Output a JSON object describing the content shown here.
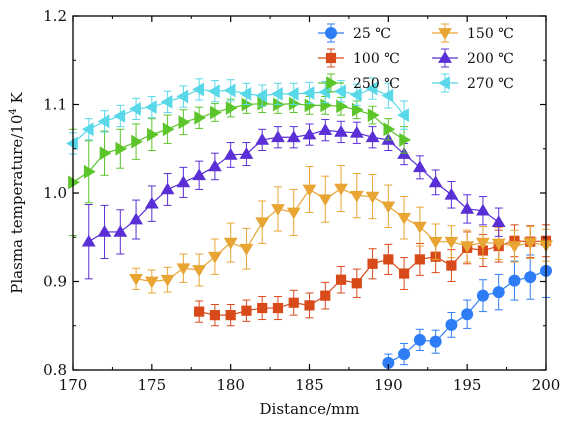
{
  "chart_data": {
    "type": "scatter",
    "title": "",
    "xlabel": "Distance/mm",
    "ylabel_prefix": "Plasma temperature/10",
    "ylabel_sup": "4",
    "ylabel_suffix": " K",
    "xlim": [
      170,
      200
    ],
    "ylim": [
      0.8,
      1.2
    ],
    "x_ticks": [
      170,
      175,
      180,
      185,
      190,
      195,
      200
    ],
    "y_ticks": [
      0.8,
      0.9,
      1.0,
      1.1,
      1.2
    ],
    "x_tick_labels": [
      "170",
      "175",
      "180",
      "185",
      "190",
      "195",
      "200"
    ],
    "y_tick_labels": [
      "0.8",
      "0.9",
      "1.0",
      "1.1",
      "1.2"
    ],
    "grid": false,
    "legend_position": "top-right",
    "series": [
      {
        "name": "25 ℃",
        "color": "#2f7df6",
        "marker": "circle",
        "x": [
          190,
          191,
          192,
          193,
          194,
          195,
          196,
          197,
          198,
          199,
          200
        ],
        "y": [
          0.808,
          0.818,
          0.834,
          0.832,
          0.851,
          0.863,
          0.884,
          0.888,
          0.901,
          0.905,
          0.912
        ],
        "err": [
          0.01,
          0.012,
          0.012,
          0.013,
          0.014,
          0.016,
          0.018,
          0.02,
          0.022,
          0.025,
          0.03
        ]
      },
      {
        "name": "100 ℃",
        "color": "#d94a1a",
        "marker": "square",
        "x": [
          178,
          179,
          180,
          181,
          182,
          183,
          184,
          185,
          186,
          187,
          188,
          189,
          190,
          191,
          192,
          193,
          194,
          195,
          196,
          197,
          198,
          199,
          200
        ],
        "y": [
          0.866,
          0.862,
          0.862,
          0.867,
          0.87,
          0.87,
          0.876,
          0.873,
          0.884,
          0.902,
          0.898,
          0.92,
          0.925,
          0.909,
          0.925,
          0.928,
          0.918,
          0.938,
          0.935,
          0.94,
          0.946,
          0.945,
          0.946
        ],
        "err": [
          0.012,
          0.012,
          0.012,
          0.012,
          0.013,
          0.013,
          0.014,
          0.014,
          0.015,
          0.015,
          0.016,
          0.017,
          0.017,
          0.018,
          0.018,
          0.018,
          0.018,
          0.018,
          0.018,
          0.018,
          0.018,
          0.018,
          0.018
        ]
      },
      {
        "name": "150 ℃",
        "color": "#e8a534",
        "marker": "triangle-down",
        "x": [
          174,
          175,
          176,
          177,
          178,
          179,
          180,
          181,
          182,
          183,
          184,
          185,
          186,
          187,
          188,
          189,
          190,
          191,
          192,
          193,
          194,
          195,
          196,
          197,
          198,
          199,
          200
        ],
        "y": [
          0.903,
          0.9,
          0.902,
          0.915,
          0.913,
          0.928,
          0.944,
          0.937,
          0.967,
          0.982,
          0.978,
          1.004,
          0.993,
          1.005,
          0.997,
          0.996,
          0.985,
          0.972,
          0.962,
          0.945,
          0.945,
          0.94,
          0.944,
          0.943,
          0.94,
          0.944,
          0.941
        ],
        "err": [
          0.012,
          0.013,
          0.014,
          0.016,
          0.018,
          0.02,
          0.022,
          0.023,
          0.024,
          0.025,
          0.026,
          0.026,
          0.026,
          0.026,
          0.025,
          0.025,
          0.024,
          0.024,
          0.022,
          0.02,
          0.018,
          0.018,
          0.018,
          0.018,
          0.018,
          0.018,
          0.018
        ]
      },
      {
        "name": "200 ℃",
        "color": "#5a2fd6",
        "marker": "triangle-up",
        "x": [
          171,
          172,
          173,
          174,
          175,
          176,
          177,
          178,
          179,
          180,
          181,
          182,
          183,
          184,
          185,
          186,
          187,
          188,
          189,
          190,
          191,
          192,
          193,
          194,
          195,
          196,
          197
        ],
        "y": [
          0.945,
          0.956,
          0.956,
          0.97,
          0.988,
          1.004,
          1.012,
          1.02,
          1.03,
          1.043,
          1.044,
          1.06,
          1.063,
          1.063,
          1.066,
          1.071,
          1.069,
          1.068,
          1.063,
          1.06,
          1.044,
          1.029,
          1.012,
          0.998,
          0.982,
          0.98,
          0.967
        ],
        "err": [
          0.042,
          0.03,
          0.025,
          0.022,
          0.02,
          0.018,
          0.017,
          0.016,
          0.015,
          0.014,
          0.013,
          0.012,
          0.012,
          0.012,
          0.012,
          0.012,
          0.012,
          0.012,
          0.012,
          0.012,
          0.012,
          0.013,
          0.014,
          0.015,
          0.016,
          0.016,
          0.016
        ]
      },
      {
        "name": "250 ℃",
        "color": "#5cc52a",
        "marker": "triangle-right",
        "x": [
          170,
          171,
          172,
          173,
          174,
          175,
          176,
          177,
          178,
          179,
          180,
          181,
          182,
          183,
          184,
          185,
          186,
          187,
          188,
          189,
          190,
          191
        ],
        "y": [
          1.012,
          1.024,
          1.045,
          1.05,
          1.058,
          1.066,
          1.072,
          1.08,
          1.085,
          1.091,
          1.096,
          1.1,
          1.101,
          1.1,
          1.101,
          1.099,
          1.099,
          1.098,
          1.094,
          1.088,
          1.072,
          1.06
        ],
        "err": [
          0.06,
          0.035,
          0.025,
          0.022,
          0.02,
          0.018,
          0.016,
          0.014,
          0.012,
          0.01,
          0.01,
          0.01,
          0.01,
          0.01,
          0.01,
          0.01,
          0.01,
          0.01,
          0.01,
          0.01,
          0.012,
          0.015
        ]
      },
      {
        "name": "270 ℃",
        "color": "#58d8e8",
        "marker": "triangle-left",
        "x": [
          170,
          171,
          172,
          173,
          174,
          175,
          176,
          177,
          178,
          179,
          180,
          181,
          182,
          183,
          184,
          185,
          186,
          187,
          188,
          189,
          190,
          191
        ],
        "y": [
          1.056,
          1.072,
          1.081,
          1.087,
          1.095,
          1.097,
          1.103,
          1.109,
          1.117,
          1.115,
          1.116,
          1.112,
          1.11,
          1.112,
          1.112,
          1.113,
          1.114,
          1.115,
          1.111,
          1.118,
          1.11,
          1.088
        ],
        "err": [
          0.012,
          0.012,
          0.012,
          0.012,
          0.012,
          0.012,
          0.012,
          0.012,
          0.012,
          0.012,
          0.012,
          0.012,
          0.012,
          0.012,
          0.012,
          0.012,
          0.012,
          0.012,
          0.012,
          0.012,
          0.014,
          0.016
        ]
      }
    ],
    "legend_layout": [
      [
        0,
        2
      ],
      [
        1,
        3
      ],
      [
        4,
        5
      ]
    ]
  }
}
